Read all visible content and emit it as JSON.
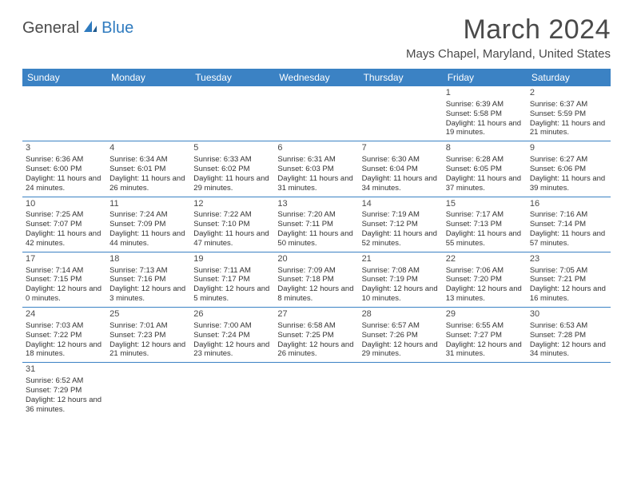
{
  "logo": {
    "text1": "General",
    "text2": "Blue"
  },
  "title": "March 2024",
  "location": "Mays Chapel, Maryland, United States",
  "colors": {
    "header_bg": "#3b82c4",
    "header_text": "#ffffff",
    "text": "#4a4a4a",
    "rule": "#3b82c4"
  },
  "day_names": [
    "Sunday",
    "Monday",
    "Tuesday",
    "Wednesday",
    "Thursday",
    "Friday",
    "Saturday"
  ],
  "weeks": [
    [
      null,
      null,
      null,
      null,
      null,
      {
        "d": "1",
        "sr": "Sunrise: 6:39 AM",
        "ss": "Sunset: 5:58 PM",
        "dl": "Daylight: 11 hours and 19 minutes."
      },
      {
        "d": "2",
        "sr": "Sunrise: 6:37 AM",
        "ss": "Sunset: 5:59 PM",
        "dl": "Daylight: 11 hours and 21 minutes."
      }
    ],
    [
      {
        "d": "3",
        "sr": "Sunrise: 6:36 AM",
        "ss": "Sunset: 6:00 PM",
        "dl": "Daylight: 11 hours and 24 minutes."
      },
      {
        "d": "4",
        "sr": "Sunrise: 6:34 AM",
        "ss": "Sunset: 6:01 PM",
        "dl": "Daylight: 11 hours and 26 minutes."
      },
      {
        "d": "5",
        "sr": "Sunrise: 6:33 AM",
        "ss": "Sunset: 6:02 PM",
        "dl": "Daylight: 11 hours and 29 minutes."
      },
      {
        "d": "6",
        "sr": "Sunrise: 6:31 AM",
        "ss": "Sunset: 6:03 PM",
        "dl": "Daylight: 11 hours and 31 minutes."
      },
      {
        "d": "7",
        "sr": "Sunrise: 6:30 AM",
        "ss": "Sunset: 6:04 PM",
        "dl": "Daylight: 11 hours and 34 minutes."
      },
      {
        "d": "8",
        "sr": "Sunrise: 6:28 AM",
        "ss": "Sunset: 6:05 PM",
        "dl": "Daylight: 11 hours and 37 minutes."
      },
      {
        "d": "9",
        "sr": "Sunrise: 6:27 AM",
        "ss": "Sunset: 6:06 PM",
        "dl": "Daylight: 11 hours and 39 minutes."
      }
    ],
    [
      {
        "d": "10",
        "sr": "Sunrise: 7:25 AM",
        "ss": "Sunset: 7:07 PM",
        "dl": "Daylight: 11 hours and 42 minutes."
      },
      {
        "d": "11",
        "sr": "Sunrise: 7:24 AM",
        "ss": "Sunset: 7:09 PM",
        "dl": "Daylight: 11 hours and 44 minutes."
      },
      {
        "d": "12",
        "sr": "Sunrise: 7:22 AM",
        "ss": "Sunset: 7:10 PM",
        "dl": "Daylight: 11 hours and 47 minutes."
      },
      {
        "d": "13",
        "sr": "Sunrise: 7:20 AM",
        "ss": "Sunset: 7:11 PM",
        "dl": "Daylight: 11 hours and 50 minutes."
      },
      {
        "d": "14",
        "sr": "Sunrise: 7:19 AM",
        "ss": "Sunset: 7:12 PM",
        "dl": "Daylight: 11 hours and 52 minutes."
      },
      {
        "d": "15",
        "sr": "Sunrise: 7:17 AM",
        "ss": "Sunset: 7:13 PM",
        "dl": "Daylight: 11 hours and 55 minutes."
      },
      {
        "d": "16",
        "sr": "Sunrise: 7:16 AM",
        "ss": "Sunset: 7:14 PM",
        "dl": "Daylight: 11 hours and 57 minutes."
      }
    ],
    [
      {
        "d": "17",
        "sr": "Sunrise: 7:14 AM",
        "ss": "Sunset: 7:15 PM",
        "dl": "Daylight: 12 hours and 0 minutes."
      },
      {
        "d": "18",
        "sr": "Sunrise: 7:13 AM",
        "ss": "Sunset: 7:16 PM",
        "dl": "Daylight: 12 hours and 3 minutes."
      },
      {
        "d": "19",
        "sr": "Sunrise: 7:11 AM",
        "ss": "Sunset: 7:17 PM",
        "dl": "Daylight: 12 hours and 5 minutes."
      },
      {
        "d": "20",
        "sr": "Sunrise: 7:09 AM",
        "ss": "Sunset: 7:18 PM",
        "dl": "Daylight: 12 hours and 8 minutes."
      },
      {
        "d": "21",
        "sr": "Sunrise: 7:08 AM",
        "ss": "Sunset: 7:19 PM",
        "dl": "Daylight: 12 hours and 10 minutes."
      },
      {
        "d": "22",
        "sr": "Sunrise: 7:06 AM",
        "ss": "Sunset: 7:20 PM",
        "dl": "Daylight: 12 hours and 13 minutes."
      },
      {
        "d": "23",
        "sr": "Sunrise: 7:05 AM",
        "ss": "Sunset: 7:21 PM",
        "dl": "Daylight: 12 hours and 16 minutes."
      }
    ],
    [
      {
        "d": "24",
        "sr": "Sunrise: 7:03 AM",
        "ss": "Sunset: 7:22 PM",
        "dl": "Daylight: 12 hours and 18 minutes."
      },
      {
        "d": "25",
        "sr": "Sunrise: 7:01 AM",
        "ss": "Sunset: 7:23 PM",
        "dl": "Daylight: 12 hours and 21 minutes."
      },
      {
        "d": "26",
        "sr": "Sunrise: 7:00 AM",
        "ss": "Sunset: 7:24 PM",
        "dl": "Daylight: 12 hours and 23 minutes."
      },
      {
        "d": "27",
        "sr": "Sunrise: 6:58 AM",
        "ss": "Sunset: 7:25 PM",
        "dl": "Daylight: 12 hours and 26 minutes."
      },
      {
        "d": "28",
        "sr": "Sunrise: 6:57 AM",
        "ss": "Sunset: 7:26 PM",
        "dl": "Daylight: 12 hours and 29 minutes."
      },
      {
        "d": "29",
        "sr": "Sunrise: 6:55 AM",
        "ss": "Sunset: 7:27 PM",
        "dl": "Daylight: 12 hours and 31 minutes."
      },
      {
        "d": "30",
        "sr": "Sunrise: 6:53 AM",
        "ss": "Sunset: 7:28 PM",
        "dl": "Daylight: 12 hours and 34 minutes."
      }
    ],
    [
      {
        "d": "31",
        "sr": "Sunrise: 6:52 AM",
        "ss": "Sunset: 7:29 PM",
        "dl": "Daylight: 12 hours and 36 minutes."
      },
      null,
      null,
      null,
      null,
      null,
      null
    ]
  ]
}
